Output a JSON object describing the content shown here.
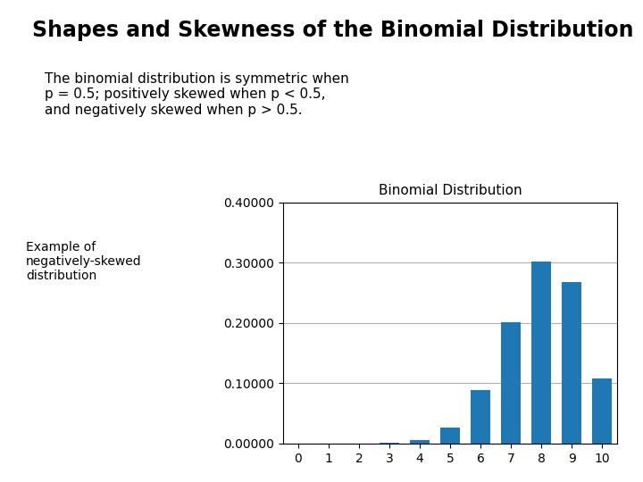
{
  "chart_data": {
    "type": "bar",
    "title": "Binomial Distribution",
    "x": [
      0,
      1,
      2,
      3,
      4,
      5,
      6,
      7,
      8,
      9,
      10
    ],
    "values": [
      0.0,
      0.0,
      7e-05,
      0.00079,
      0.00551,
      0.02642,
      0.08808,
      0.20133,
      0.30199,
      0.26844,
      0.10737
    ],
    "xlim": [
      -0.5,
      10.5
    ],
    "xticks": [
      0,
      1,
      2,
      3,
      4,
      5,
      6,
      7,
      8,
      9,
      10
    ],
    "ylim": [
      0,
      0.40001
    ],
    "yticks": [
      {
        "value": 0,
        "label": "0.00000"
      },
      {
        "value": 0.1,
        "label": "0.10000"
      },
      {
        "value": 0.2,
        "label": "0.20000"
      },
      {
        "value": 0.3,
        "label": "0.30000"
      },
      {
        "value": 0.4,
        "label": "0.40000"
      }
    ],
    "grid": true,
    "annotations": [
      "Shapes and Skewness of the Binomial Distribution",
      "The binomial distribution is symmetric when\np = 0.5; positively skewed when p < 0.5,\nand negatively skewed when p > 0.5.",
      "Example of\nnegatively-skewed\ndistribution"
    ]
  }
}
